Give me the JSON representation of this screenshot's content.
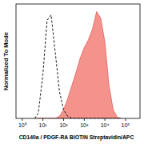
{
  "chart_data": {
    "type": "line",
    "x_label": "CD140a / PDGF-RA BIOTIN Streptavidin/APC",
    "y_label": "Normalized To Mode",
    "log": "x",
    "tick_labels": "x",
    "xlim": [
      0.5,
      500000
    ],
    "ylim": [
      0,
      105
    ],
    "xticks": [
      {
        "value": 1,
        "label": "10⁰"
      },
      {
        "value": 10,
        "label": "10¹"
      },
      {
        "value": 100,
        "label": "10²"
      },
      {
        "value": 1000,
        "label": "10³"
      },
      {
        "value": 10000,
        "label": "10⁴"
      },
      {
        "value": 100000,
        "label": "10⁵"
      }
    ],
    "x": [
      4,
      6,
      10,
      16,
      25,
      40,
      63,
      100,
      158,
      251,
      398,
      631,
      1000,
      1585,
      2512,
      3981,
      6310,
      10000,
      15849,
      25119,
      39811,
      63096
    ],
    "series": [
      {
        "type": "area",
        "color": "#f4928c",
        "values": [
          0,
          0,
          0,
          0,
          0,
          0,
          2,
          8,
          18,
          30,
          42,
          55,
          65,
          72,
          82,
          98,
          92,
          70,
          30,
          8,
          1,
          0
        ]
      },
      {
        "type": "line",
        "color": "#000000",
        "line_style": "dashed",
        "values": [
          0,
          5,
          40,
          90,
          95,
          60,
          25,
          8,
          2,
          0,
          0,
          0,
          0,
          0,
          0,
          0,
          0,
          0,
          0,
          0,
          0,
          0
        ]
      }
    ]
  }
}
